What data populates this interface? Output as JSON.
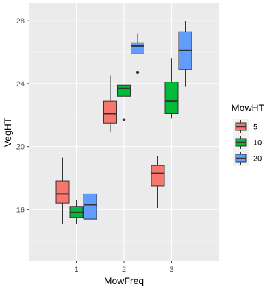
{
  "chart_data": {
    "type": "boxplot",
    "xlabel": "MowFreq",
    "ylabel": "VegHT",
    "ylim": [
      12.7,
      29.1
    ],
    "y_ticks": [
      16,
      20,
      24,
      28
    ],
    "categories": [
      "1",
      "2",
      "3"
    ],
    "grid": true,
    "legend": {
      "title": "MowHT",
      "position": "right",
      "entries": [
        "5",
        "10",
        "20"
      ]
    },
    "series": [
      {
        "name": "5",
        "color": "#F8766D",
        "boxes": [
          {
            "x": "1",
            "min": 15.1,
            "q1": 16.4,
            "median": 17.0,
            "q3": 17.8,
            "max": 19.3,
            "outliers": []
          },
          {
            "x": "2",
            "min": 20.9,
            "q1": 21.5,
            "median": 22.1,
            "q3": 22.9,
            "max": 24.5,
            "outliers": []
          },
          {
            "x": "3",
            "min": 16.1,
            "q1": 17.5,
            "median": 18.3,
            "q3": 18.8,
            "max": 19.4,
            "outliers": []
          }
        ]
      },
      {
        "name": "10",
        "color": "#00BA38",
        "boxes": [
          {
            "x": "1",
            "min": 15.1,
            "q1": 15.5,
            "median": 15.8,
            "q3": 16.2,
            "max": 16.6,
            "outliers": []
          },
          {
            "x": "2",
            "min": 23.2,
            "q1": 23.2,
            "median": 23.7,
            "q3": 23.9,
            "max": 23.9,
            "outliers": [
              21.7
            ]
          },
          {
            "x": "3",
            "min": 21.8,
            "q1": 22.1,
            "median": 22.9,
            "q3": 24.1,
            "max": 25.6,
            "outliers": []
          }
        ]
      },
      {
        "name": "20",
        "color": "#619CFF",
        "boxes": [
          {
            "x": "1",
            "min": 13.7,
            "q1": 15.4,
            "median": 16.3,
            "q3": 17.0,
            "max": 17.9,
            "outliers": []
          },
          {
            "x": "2",
            "min": 25.9,
            "q1": 25.9,
            "median": 26.4,
            "q3": 26.6,
            "max": 27.2,
            "outliers": [
              24.7
            ]
          },
          {
            "x": "3",
            "min": 23.8,
            "q1": 24.9,
            "median": 26.1,
            "q3": 27.3,
            "max": 28.0,
            "outliers": []
          }
        ]
      }
    ]
  }
}
